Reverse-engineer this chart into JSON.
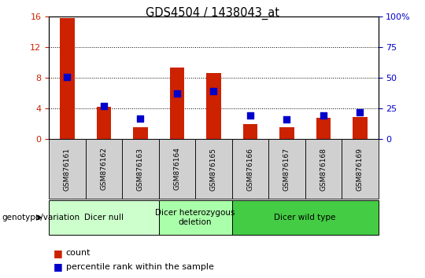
{
  "title": "GDS4504 / 1438043_at",
  "samples": [
    "GSM876161",
    "GSM876162",
    "GSM876163",
    "GSM876164",
    "GSM876165",
    "GSM876166",
    "GSM876167",
    "GSM876168",
    "GSM876169"
  ],
  "counts": [
    15.8,
    4.2,
    1.5,
    9.3,
    8.6,
    2.0,
    1.5,
    2.8,
    2.9
  ],
  "percentile_scaled": [
    51.0,
    27.0,
    17.0,
    37.0,
    39.0,
    19.0,
    16.0,
    19.5,
    22.0
  ],
  "left_ylim": [
    0,
    16
  ],
  "left_yticks": [
    0,
    4,
    8,
    12,
    16
  ],
  "right_ylim": [
    0,
    100
  ],
  "right_yticks": [
    0,
    25,
    50,
    75,
    100
  ],
  "right_yticklabels": [
    "0",
    "25",
    "50",
    "75",
    "100%"
  ],
  "bar_color": "#cc2200",
  "dot_color": "#0000cc",
  "groups": [
    {
      "label": "Dicer null",
      "start": 0,
      "end": 3,
      "color": "#ccffcc"
    },
    {
      "label": "Dicer heterozygous\ndeletion",
      "start": 3,
      "end": 5,
      "color": "#aaffaa"
    },
    {
      "label": "Dicer wild type",
      "start": 5,
      "end": 9,
      "color": "#44cc44"
    }
  ],
  "group_row_label": "genotype/variation",
  "legend_count_label": "count",
  "legend_pct_label": "percentile rank within the sample",
  "grid_color": "#000000"
}
